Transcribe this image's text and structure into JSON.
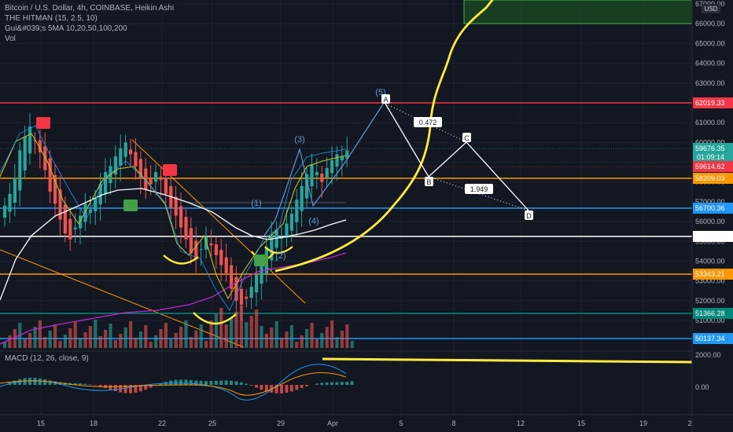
{
  "header": {
    "line1": "Bitcoin / U.S. Dollar, 4h, COINBASE, Heikin Ashi",
    "line2": "THE HITMAN (15, 2.5, 10)",
    "line3": "Gui&#039;s 5MA 10,20,50,100,200",
    "line4": "Vol"
  },
  "macd_label": "MACD (12, 26, close, 9)",
  "currency": "USD",
  "colors": {
    "background": "#131722",
    "up": "#26a69a",
    "down": "#ef5350",
    "red_line": "#f23645",
    "orange_line": "#ff9800",
    "teal_line": "#00897b",
    "blue_line": "#2196f3",
    "white_line": "#ffffff",
    "yellow_draw": "#ffeb3b",
    "zone_fill": "#1b5e20",
    "pattern": "#ffffff",
    "wave": "#5b9bd5"
  },
  "chart_data": {
    "type": "candlestick",
    "x_ticks": [
      "15",
      "18",
      "22",
      "25",
      "29",
      "Apr",
      "5",
      "8",
      "12",
      "15",
      "19",
      "2"
    ],
    "y_ticks": [
      67000,
      66000,
      65000,
      64000,
      63000,
      62000,
      61000,
      60000,
      59000,
      58000,
      57000,
      56000,
      55000,
      54000,
      53000,
      52000,
      51000
    ],
    "ylim": [
      50000,
      67200
    ],
    "price_levels": [
      {
        "value": "62019.33",
        "kind": "red"
      },
      {
        "value": "59676.35",
        "kind": "current",
        "sub": "01:09:14"
      },
      {
        "value": "59614.62",
        "kind": "red-tag"
      },
      {
        "value": "58209.03",
        "kind": "orange"
      },
      {
        "value": "56700.36",
        "kind": "blue"
      },
      {
        "value": "55238.47",
        "kind": "white"
      },
      {
        "value": "53343.21",
        "kind": "orange"
      },
      {
        "value": "51366.28",
        "kind": "teal"
      },
      {
        "value": "50137.34",
        "kind": "blue"
      }
    ],
    "harmonic_points": [
      "A",
      "B",
      "C",
      "D"
    ],
    "harmonic_ratios": [
      "0.472",
      "1.949"
    ],
    "waves": [
      "(1)",
      "(2)",
      "(3)",
      "(4)",
      "(5)"
    ],
    "macd_ticks": [
      "2000.00",
      "0.00"
    ]
  }
}
